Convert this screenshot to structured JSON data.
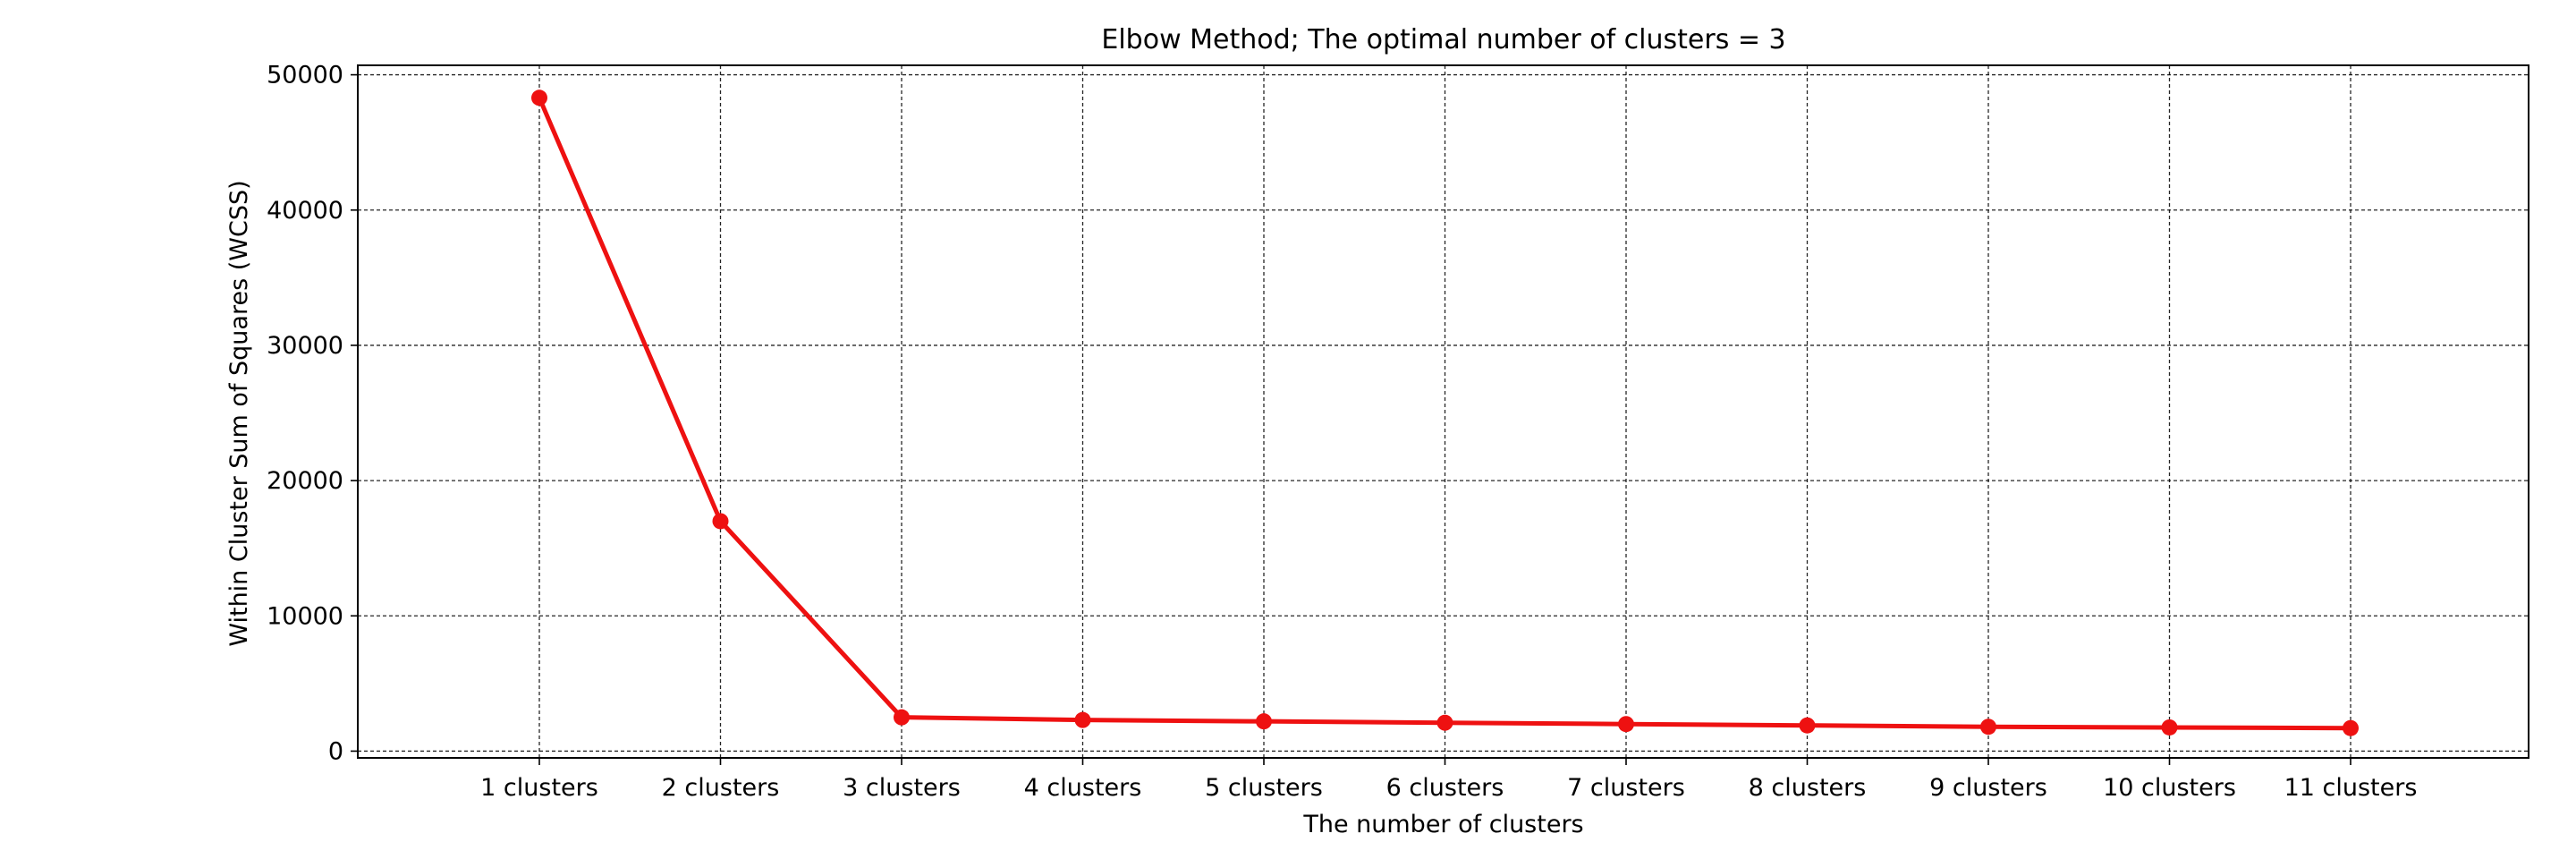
{
  "chart_data": {
    "type": "line",
    "title": "Elbow Method; The optimal number of clusters = 3",
    "xlabel": "The number of clusters",
    "ylabel": "Within Cluster Sum of Squares (WCSS)",
    "categories": [
      "1 clusters",
      "2 clusters",
      "3 clusters",
      "4 clusters",
      "5 clusters",
      "6 clusters",
      "7 clusters",
      "8 clusters",
      "9 clusters",
      "10 clusters",
      "11 clusters"
    ],
    "series": [
      {
        "values": [
          48300,
          17000,
          2500,
          2300,
          2200,
          2100,
          2000,
          1900,
          1800,
          1750,
          1700
        ],
        "color": "#ee1111",
        "marker": "circle"
      }
    ],
    "ylim": [
      -500,
      50700
    ],
    "yticks": [
      0,
      10000,
      20000,
      30000,
      40000,
      50000
    ],
    "ytick_labels": [
      "0",
      "10000",
      "20000",
      "30000",
      "40000",
      "50000"
    ],
    "grid": true,
    "legend": false
  }
}
